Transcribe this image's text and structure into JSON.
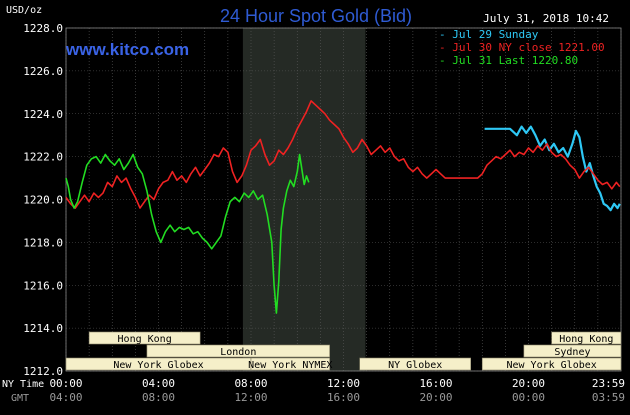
{
  "chart_data": {
    "type": "line",
    "title": "24 Hour Spot Gold (Bid)",
    "site": "www.kitco.com",
    "timestamp": "July 31, 2018 10:42",
    "ylabel": "USD/oz",
    "ylim": [
      1212.0,
      1228.0
    ],
    "y_ticks": [
      "1212.0",
      "1214.0",
      "1216.0",
      "1218.0",
      "1220.0",
      "1222.0",
      "1224.0",
      "1226.0",
      "1228.0"
    ],
    "x_axis_label_1": "NY Time",
    "x_axis_label_2": "GMT",
    "x_ticks_ny": [
      "00:00",
      "04:00",
      "08:00",
      "12:00",
      "16:00",
      "20:00",
      "23:59"
    ],
    "x_ticks_gmt": [
      "04:00",
      "08:00",
      "12:00",
      "16:00",
      "20:00",
      "00:00",
      "03:59"
    ],
    "grid": true,
    "legend_position": "top-right",
    "colors": {
      "background": "#000000",
      "grid": "#5a5a5a",
      "session_fill": "#f5efc9",
      "shade": "#252a25"
    },
    "sessions_rows": [
      [
        "Hong Kong",
        "Hong Kong"
      ],
      [
        "London",
        "Sydney"
      ],
      [
        "New York Globex",
        "New York NYMEX",
        "NY Globex",
        "New York Globex"
      ]
    ],
    "series": [
      {
        "name": "Jul 29 Sunday",
        "color": "#2ec8f5",
        "points": [
          [
            18.1,
            1223.3
          ],
          [
            18.4,
            1223.3
          ],
          [
            18.8,
            1223.3
          ],
          [
            19.2,
            1223.3
          ],
          [
            19.5,
            1223.0
          ],
          [
            19.7,
            1223.4
          ],
          [
            19.9,
            1223.1
          ],
          [
            20.1,
            1223.4
          ],
          [
            20.3,
            1223.0
          ],
          [
            20.5,
            1222.5
          ],
          [
            20.7,
            1222.8
          ],
          [
            20.9,
            1222.3
          ],
          [
            21.1,
            1222.6
          ],
          [
            21.3,
            1222.2
          ],
          [
            21.5,
            1222.4
          ],
          [
            21.7,
            1222.0
          ],
          [
            21.9,
            1222.6
          ],
          [
            22.05,
            1223.2
          ],
          [
            22.2,
            1222.9
          ],
          [
            22.35,
            1222.0
          ],
          [
            22.5,
            1221.3
          ],
          [
            22.65,
            1221.7
          ],
          [
            22.8,
            1221.1
          ],
          [
            22.95,
            1220.6
          ],
          [
            23.1,
            1220.3
          ],
          [
            23.25,
            1219.8
          ],
          [
            23.4,
            1219.7
          ],
          [
            23.55,
            1219.5
          ],
          [
            23.7,
            1219.8
          ],
          [
            23.85,
            1219.6
          ],
          [
            23.95,
            1219.8
          ]
        ]
      },
      {
        "name": "Jul 30 NY close 1221.00",
        "color": "#ee2222",
        "points": [
          [
            0.0,
            1220.1
          ],
          [
            0.2,
            1219.8
          ],
          [
            0.4,
            1219.6
          ],
          [
            0.6,
            1219.9
          ],
          [
            0.8,
            1220.2
          ],
          [
            1.0,
            1219.9
          ],
          [
            1.2,
            1220.3
          ],
          [
            1.4,
            1220.1
          ],
          [
            1.6,
            1220.3
          ],
          [
            1.8,
            1220.8
          ],
          [
            2.0,
            1220.6
          ],
          [
            2.2,
            1221.1
          ],
          [
            2.4,
            1220.8
          ],
          [
            2.6,
            1221.0
          ],
          [
            2.8,
            1220.5
          ],
          [
            3.0,
            1220.1
          ],
          [
            3.2,
            1219.6
          ],
          [
            3.4,
            1219.9
          ],
          [
            3.6,
            1220.2
          ],
          [
            3.8,
            1220.0
          ],
          [
            4.0,
            1220.5
          ],
          [
            4.2,
            1220.8
          ],
          [
            4.4,
            1220.9
          ],
          [
            4.6,
            1221.3
          ],
          [
            4.8,
            1220.9
          ],
          [
            5.0,
            1221.1
          ],
          [
            5.2,
            1220.8
          ],
          [
            5.4,
            1221.2
          ],
          [
            5.6,
            1221.5
          ],
          [
            5.8,
            1221.1
          ],
          [
            6.0,
            1221.4
          ],
          [
            6.2,
            1221.7
          ],
          [
            6.4,
            1222.1
          ],
          [
            6.6,
            1222.0
          ],
          [
            6.8,
            1222.4
          ],
          [
            7.0,
            1222.2
          ],
          [
            7.2,
            1221.3
          ],
          [
            7.4,
            1220.8
          ],
          [
            7.6,
            1221.1
          ],
          [
            7.8,
            1221.6
          ],
          [
            8.0,
            1222.3
          ],
          [
            8.2,
            1222.5
          ],
          [
            8.4,
            1222.8
          ],
          [
            8.6,
            1222.1
          ],
          [
            8.8,
            1221.6
          ],
          [
            9.0,
            1221.8
          ],
          [
            9.2,
            1222.3
          ],
          [
            9.4,
            1222.1
          ],
          [
            9.6,
            1222.4
          ],
          [
            9.8,
            1222.8
          ],
          [
            10.0,
            1223.3
          ],
          [
            10.2,
            1223.7
          ],
          [
            10.4,
            1224.1
          ],
          [
            10.6,
            1224.6
          ],
          [
            10.8,
            1224.4
          ],
          [
            11.0,
            1224.2
          ],
          [
            11.2,
            1224.0
          ],
          [
            11.4,
            1223.7
          ],
          [
            11.6,
            1223.5
          ],
          [
            11.8,
            1223.3
          ],
          [
            12.0,
            1222.9
          ],
          [
            12.2,
            1222.6
          ],
          [
            12.4,
            1222.2
          ],
          [
            12.6,
            1222.4
          ],
          [
            12.8,
            1222.8
          ],
          [
            13.0,
            1222.5
          ],
          [
            13.2,
            1222.1
          ],
          [
            13.4,
            1222.3
          ],
          [
            13.6,
            1222.5
          ],
          [
            13.8,
            1222.2
          ],
          [
            14.0,
            1222.4
          ],
          [
            14.2,
            1222.0
          ],
          [
            14.4,
            1221.8
          ],
          [
            14.6,
            1221.9
          ],
          [
            14.8,
            1221.5
          ],
          [
            15.0,
            1221.3
          ],
          [
            15.2,
            1221.5
          ],
          [
            15.4,
            1221.2
          ],
          [
            15.6,
            1221.0
          ],
          [
            15.8,
            1221.2
          ],
          [
            16.0,
            1221.4
          ],
          [
            16.2,
            1221.2
          ],
          [
            16.4,
            1221.0
          ],
          [
            16.6,
            1221.0
          ],
          [
            16.8,
            1221.0
          ],
          [
            17.0,
            1221.0
          ],
          [
            17.2,
            1221.0
          ],
          [
            17.4,
            1221.0
          ],
          [
            17.6,
            1221.0
          ],
          [
            17.8,
            1221.0
          ],
          [
            18.0,
            1221.2
          ],
          [
            18.2,
            1221.6
          ],
          [
            18.4,
            1221.8
          ],
          [
            18.6,
            1222.0
          ],
          [
            18.8,
            1221.9
          ],
          [
            19.0,
            1222.1
          ],
          [
            19.2,
            1222.3
          ],
          [
            19.4,
            1222.0
          ],
          [
            19.6,
            1222.2
          ],
          [
            19.8,
            1222.1
          ],
          [
            20.0,
            1222.4
          ],
          [
            20.2,
            1222.2
          ],
          [
            20.4,
            1222.5
          ],
          [
            20.6,
            1222.3
          ],
          [
            20.8,
            1222.6
          ],
          [
            21.0,
            1222.2
          ],
          [
            21.2,
            1222.0
          ],
          [
            21.4,
            1222.1
          ],
          [
            21.6,
            1221.9
          ],
          [
            21.8,
            1221.6
          ],
          [
            22.0,
            1221.4
          ],
          [
            22.2,
            1221.0
          ],
          [
            22.4,
            1221.3
          ],
          [
            22.6,
            1221.5
          ],
          [
            22.8,
            1221.2
          ],
          [
            23.0,
            1220.9
          ],
          [
            23.2,
            1220.7
          ],
          [
            23.4,
            1220.8
          ],
          [
            23.6,
            1220.5
          ],
          [
            23.8,
            1220.8
          ],
          [
            23.95,
            1220.6
          ]
        ]
      },
      {
        "name": "Jul 31 Last 1220.80",
        "color": "#22dd22",
        "points": [
          [
            0.0,
            1221.0
          ],
          [
            0.1,
            1220.6
          ],
          [
            0.2,
            1220.0
          ],
          [
            0.35,
            1219.6
          ],
          [
            0.5,
            1219.9
          ],
          [
            0.7,
            1220.8
          ],
          [
            0.9,
            1221.6
          ],
          [
            1.1,
            1221.9
          ],
          [
            1.3,
            1222.0
          ],
          [
            1.5,
            1221.7
          ],
          [
            1.7,
            1222.1
          ],
          [
            1.9,
            1221.8
          ],
          [
            2.1,
            1221.6
          ],
          [
            2.3,
            1221.9
          ],
          [
            2.5,
            1221.4
          ],
          [
            2.7,
            1221.7
          ],
          [
            2.9,
            1222.1
          ],
          [
            3.1,
            1221.5
          ],
          [
            3.3,
            1221.2
          ],
          [
            3.5,
            1220.4
          ],
          [
            3.7,
            1219.3
          ],
          [
            3.9,
            1218.5
          ],
          [
            4.1,
            1218.0
          ],
          [
            4.3,
            1218.5
          ],
          [
            4.5,
            1218.8
          ],
          [
            4.7,
            1218.5
          ],
          [
            4.9,
            1218.7
          ],
          [
            5.1,
            1218.6
          ],
          [
            5.3,
            1218.7
          ],
          [
            5.5,
            1218.4
          ],
          [
            5.7,
            1218.5
          ],
          [
            5.9,
            1218.2
          ],
          [
            6.1,
            1218.0
          ],
          [
            6.3,
            1217.7
          ],
          [
            6.5,
            1218.0
          ],
          [
            6.7,
            1218.3
          ],
          [
            6.9,
            1219.2
          ],
          [
            7.1,
            1219.9
          ],
          [
            7.3,
            1220.1
          ],
          [
            7.5,
            1219.9
          ],
          [
            7.7,
            1220.3
          ],
          [
            7.9,
            1220.1
          ],
          [
            8.1,
            1220.4
          ],
          [
            8.3,
            1220.0
          ],
          [
            8.5,
            1220.2
          ],
          [
            8.7,
            1219.3
          ],
          [
            8.9,
            1218.0
          ],
          [
            9.0,
            1216.0
          ],
          [
            9.1,
            1214.7
          ],
          [
            9.2,
            1216.2
          ],
          [
            9.3,
            1218.6
          ],
          [
            9.4,
            1219.6
          ],
          [
            9.55,
            1220.4
          ],
          [
            9.7,
            1220.9
          ],
          [
            9.85,
            1220.6
          ],
          [
            10.0,
            1221.3
          ],
          [
            10.1,
            1222.1
          ],
          [
            10.2,
            1221.4
          ],
          [
            10.3,
            1220.7
          ],
          [
            10.4,
            1221.1
          ],
          [
            10.5,
            1220.8
          ]
        ]
      }
    ]
  }
}
